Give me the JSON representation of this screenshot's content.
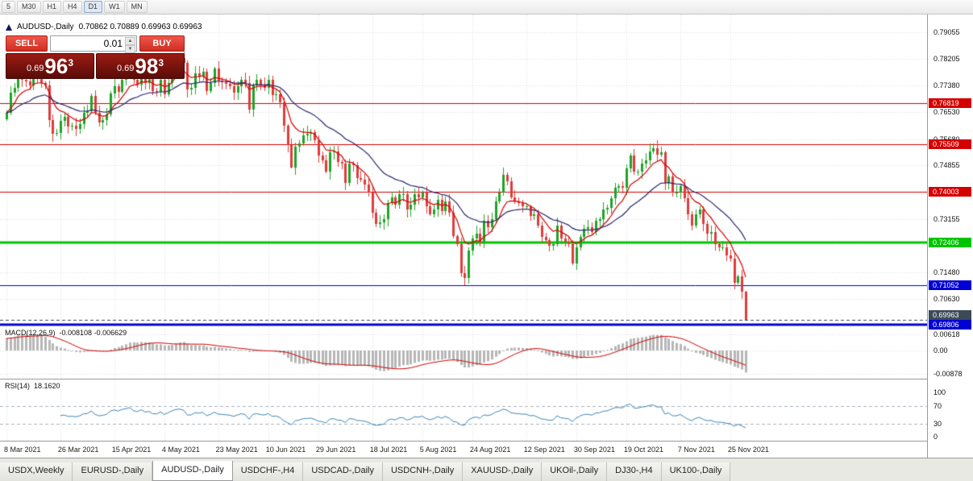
{
  "toolbar": {
    "timeframes": [
      "5",
      "M30",
      "H1",
      "H4",
      "D1",
      "W1",
      "MN"
    ],
    "active": "D1"
  },
  "chart_header": {
    "symbol": "AUDUSD-,Daily",
    "ohlc": "0.70862 0.70889 0.69963 0.69963"
  },
  "trade_panel": {
    "sell_label": "SELL",
    "buy_label": "BUY",
    "lot": "0.01",
    "sell_price": {
      "prefix": "0.69",
      "big": "96",
      "sup": "3"
    },
    "buy_price": {
      "prefix": "0.69",
      "big": "98",
      "sup": "3"
    },
    "button_color": "#d32f2f",
    "price_panel_color": "#6b100b"
  },
  "tabs": {
    "items": [
      "USDX,Weekly",
      "EURUSD-,Daily",
      "AUDUSD-,Daily",
      "USDCHF-,H4",
      "USDCAD-,Daily",
      "USDCNH-,Daily",
      "XAUUSD-,Daily",
      "UKOil-,Daily",
      "DJ30-,H4",
      "UK100-,Daily"
    ],
    "active_index": 2
  },
  "chart_data": {
    "type": "candlestick",
    "symbol": "AUDUSD",
    "timeframe": "Daily",
    "last_ohlc": {
      "open": 0.70862,
      "high": 0.70889,
      "low": 0.69963,
      "close": 0.69963
    },
    "up_color": "#1fa327",
    "down_color": "#e03b3b",
    "grid": true,
    "y_axis": {
      "ticks": [
        {
          "text": "0.79055",
          "value": 0.79055
        },
        {
          "text": "0.78205",
          "value": 0.78205
        },
        {
          "text": "0.77380",
          "value": 0.7738
        },
        {
          "text": "0.76530",
          "value": 0.7653
        },
        {
          "text": "0.75680",
          "value": 0.7568
        },
        {
          "text": "0.74855",
          "value": 0.74855
        },
        {
          "text": "0.73155",
          "value": 0.73155
        },
        {
          "text": "0.71480",
          "value": 0.7148
        },
        {
          "text": "0.70630",
          "value": 0.7063
        }
      ],
      "grid_only": [
        0.74005,
        0.7233,
        0.6978
      ]
    },
    "levels": [
      {
        "text": "0.76819",
        "value": 0.76819,
        "color": "#d40000",
        "width": 1
      },
      {
        "text": "0.75509",
        "value": 0.75509,
        "color": "#d40000",
        "width": 1
      },
      {
        "text": "0.74003",
        "value": 0.74003,
        "color": "#d40000",
        "width": 1
      },
      {
        "text": "0.72406",
        "value": 0.72406,
        "color": "#00c400",
        "width": 3
      },
      {
        "text": "0.71052",
        "value": 0.71052,
        "color": "#0000d4",
        "width": 1
      },
      {
        "text": "0.69806",
        "value": 0.69806,
        "color": "#0000d4",
        "width": 3
      }
    ],
    "bid_line": {
      "text": "0.69963",
      "value": 0.69963,
      "color": "#3c4a57",
      "style": "dashed"
    },
    "date_labels": [
      {
        "text": "8 Mar 2021",
        "i": 0
      },
      {
        "text": "26 Mar 2021",
        "i": 14
      },
      {
        "text": "15 Apr 2021",
        "i": 28
      },
      {
        "text": "4 May 2021",
        "i": 41
      },
      {
        "text": "23 May 2021",
        "i": 55
      },
      {
        "text": "10 Jun 2021",
        "i": 68
      },
      {
        "text": "29 Jun 2021",
        "i": 81
      },
      {
        "text": "18 Jul 2021",
        "i": 95
      },
      {
        "text": "5 Aug 2021",
        "i": 108
      },
      {
        "text": "24 Aug 2021",
        "i": 121
      },
      {
        "text": "12 Sep 2021",
        "i": 135
      },
      {
        "text": "30 Sep 2021",
        "i": 148
      },
      {
        "text": "19 Oct 2021",
        "i": 161
      },
      {
        "text": "7 Nov 2021",
        "i": 175
      },
      {
        "text": "25 Nov 2021",
        "i": 188
      }
    ],
    "candles": {
      "first_open": 0.763,
      "closes": [
        0.765,
        0.7714,
        0.7729,
        0.7785,
        0.7755,
        0.7749,
        0.7738,
        0.7798,
        0.7758,
        0.7745,
        0.7737,
        0.7628,
        0.7586,
        0.7588,
        0.7625,
        0.7638,
        0.7608,
        0.761,
        0.76,
        0.7615,
        0.765,
        0.7655,
        0.7705,
        0.765,
        0.762,
        0.7628,
        0.7645,
        0.7712,
        0.7735,
        0.7718,
        0.7755,
        0.777,
        0.78,
        0.7755,
        0.774,
        0.7782,
        0.7745,
        0.7758,
        0.772,
        0.7716,
        0.7755,
        0.771,
        0.7745,
        0.7785,
        0.7818,
        0.7825,
        0.781,
        0.7725,
        0.773,
        0.7775,
        0.7765,
        0.778,
        0.772,
        0.7745,
        0.779,
        0.7752,
        0.7748,
        0.7742,
        0.7735,
        0.7715,
        0.7735,
        0.7755,
        0.7745,
        0.766,
        0.7738,
        0.7755,
        0.7738,
        0.773,
        0.7755,
        0.7706,
        0.771,
        0.7685,
        0.761,
        0.755,
        0.7478,
        0.7545,
        0.7555,
        0.758,
        0.7585,
        0.759,
        0.7565,
        0.7516,
        0.75,
        0.7465,
        0.7525,
        0.753,
        0.7495,
        0.749,
        0.743,
        0.749,
        0.7485,
        0.7445,
        0.744,
        0.7425,
        0.74,
        0.7335,
        0.73,
        0.7305,
        0.7315,
        0.7365,
        0.7385,
        0.736,
        0.7395,
        0.7395,
        0.7345,
        0.736,
        0.7395,
        0.7385,
        0.74,
        0.7355,
        0.733,
        0.7345,
        0.7375,
        0.734,
        0.737,
        0.7335,
        0.7262,
        0.7235,
        0.7145,
        0.713,
        0.7215,
        0.7255,
        0.727,
        0.724,
        0.731,
        0.729,
        0.7315,
        0.737,
        0.74,
        0.7455,
        0.7435,
        0.7385,
        0.737,
        0.7365,
        0.7355,
        0.7355,
        0.7325,
        0.733,
        0.7295,
        0.726,
        0.725,
        0.723,
        0.7235,
        0.7295,
        0.7255,
        0.7245,
        0.7235,
        0.7175,
        0.7225,
        0.726,
        0.7285,
        0.729,
        0.7275,
        0.731,
        0.7315,
        0.7345,
        0.735,
        0.738,
        0.7415,
        0.742,
        0.7415,
        0.7475,
        0.7515,
        0.7465,
        0.7465,
        0.749,
        0.75,
        0.753,
        0.754,
        0.7518,
        0.7525,
        0.743,
        0.745,
        0.74,
        0.74,
        0.742,
        0.738,
        0.733,
        0.7295,
        0.733,
        0.7345,
        0.73,
        0.727,
        0.7275,
        0.7235,
        0.7225,
        0.7225,
        0.72,
        0.719,
        0.7113,
        0.7135,
        0.7086,
        0.69963
      ],
      "overrides": {
        "12": {
          "low": 0.756
        },
        "45": {
          "high": 0.7832
        },
        "74": {
          "low": 0.7476
        },
        "96": {
          "low": 0.7289
        },
        "119": {
          "low": 0.7106
        },
        "129": {
          "high": 0.7477
        },
        "147": {
          "low": 0.717
        },
        "168": {
          "high": 0.7555
        },
        "192": {
          "open": 0.70862,
          "high": 0.70889,
          "low": 0.69963,
          "close": 0.69963
        }
      }
    },
    "moving_averages": [
      {
        "type": "ema",
        "period": 8,
        "color": "#d40000"
      },
      {
        "type": "ema",
        "period": 24,
        "color": "#26266e"
      }
    ],
    "macd": {
      "label": "MACD(12,26,9)",
      "values_text": "-0.008108 -0.006629",
      "fast": 12,
      "slow": 26,
      "signal": 9,
      "histogram_color": "#b6b6b6",
      "signal_color": "#d40000",
      "ticks": [
        {
          "text": "0.00618",
          "value": 0.00618
        },
        {
          "text": "0.00",
          "value": 0
        },
        {
          "text": "-0.00878",
          "value": -0.00878
        }
      ]
    },
    "rsi": {
      "label": "RSI(14)",
      "value_text": "18.1620",
      "period": 14,
      "line_color": "#3d85b8",
      "levels": [
        70,
        30
      ],
      "ticks": [
        {
          "text": "100",
          "value": 100
        },
        {
          "text": "70",
          "value": 70
        },
        {
          "text": "30",
          "value": 30
        },
        {
          "text": "0",
          "value": 0
        }
      ]
    }
  }
}
